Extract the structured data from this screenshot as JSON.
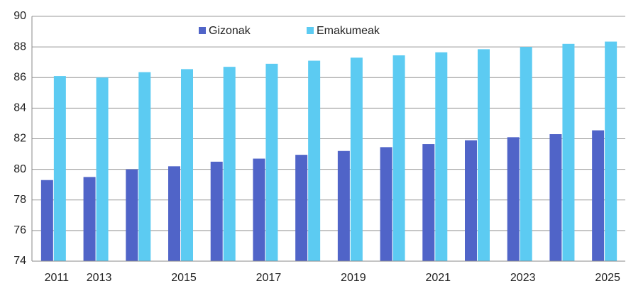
{
  "chart_data": {
    "type": "grouped_bar",
    "categories": [
      "2011",
      "2013",
      null,
      "2015",
      null,
      "2017",
      null,
      "2019",
      null,
      "2021",
      null,
      "2023",
      null,
      "2025"
    ],
    "series": [
      {
        "name": "Gizonak",
        "color": "#5064c8",
        "values": [
          79.3,
          79.5,
          80.0,
          80.2,
          80.5,
          80.7,
          80.95,
          81.2,
          81.45,
          81.65,
          81.9,
          82.1,
          82.3,
          82.55
        ]
      },
      {
        "name": "Emakumeak",
        "color": "#5ccbf2",
        "values": [
          86.1,
          86.0,
          86.35,
          86.55,
          86.7,
          86.9,
          87.1,
          87.3,
          87.45,
          87.65,
          87.85,
          88.0,
          88.2,
          88.35
        ]
      }
    ],
    "ylim": [
      74,
      90
    ],
    "yticks": [
      74,
      76,
      78,
      80,
      82,
      84,
      86,
      88,
      90
    ],
    "grid": true,
    "legend": "top"
  }
}
